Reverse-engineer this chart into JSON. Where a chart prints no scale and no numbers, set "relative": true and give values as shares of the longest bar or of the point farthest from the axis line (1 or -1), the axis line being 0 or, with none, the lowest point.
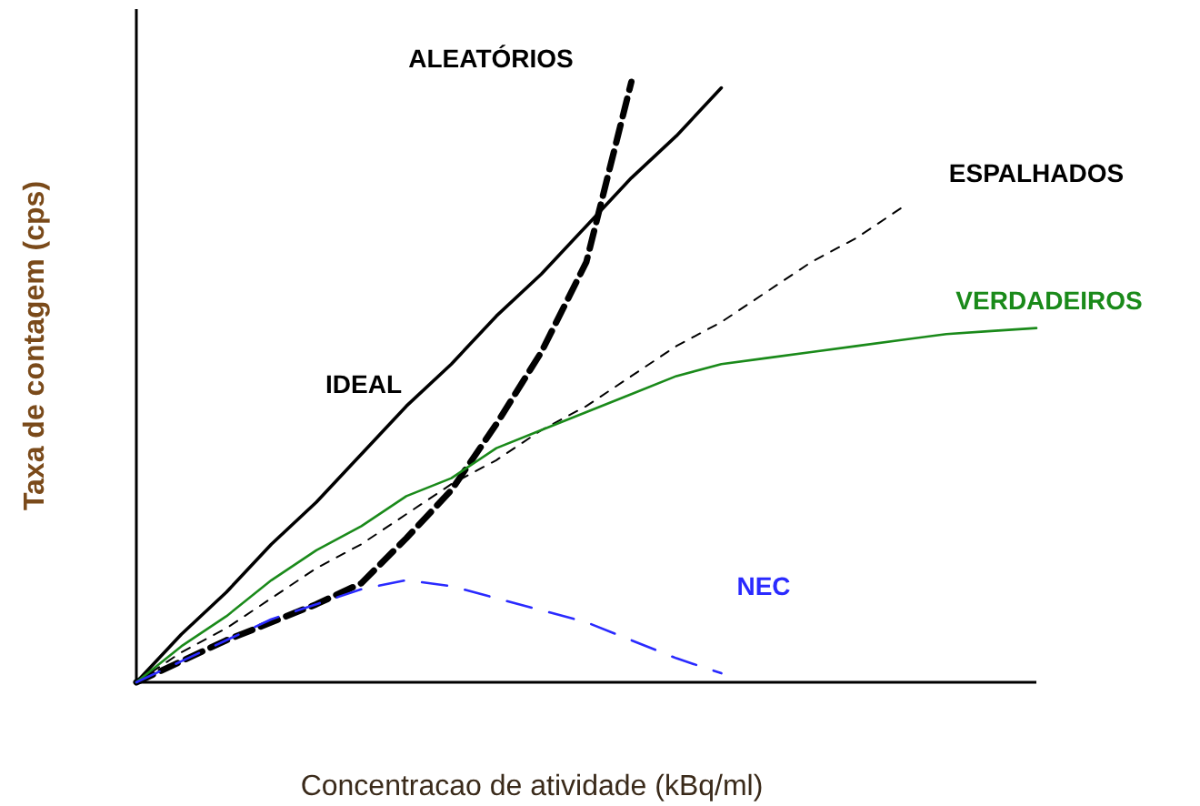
{
  "chart_data": {
    "type": "line",
    "relative": true,
    "xlabel": "Concentracao de atividade (kBq/ml)",
    "ylabel": "Taxa de contagem (cps)",
    "marker": "none",
    "categories": [
      null,
      null,
      null,
      null,
      null,
      null,
      null,
      null,
      null,
      null,
      null,
      null,
      null,
      null,
      null,
      null,
      null,
      null,
      null,
      null,
      null
    ],
    "series": [
      {
        "name": "IDEAL",
        "color": "#000000",
        "line_style": "solid",
        "values": [
          0,
          0.08,
          0.15,
          0.23,
          0.3,
          0.38,
          0.46,
          0.53,
          0.61,
          0.68,
          0.76,
          0.84,
          0.91,
          0.99,
          null,
          null,
          null,
          null,
          null,
          null,
          null
        ]
      },
      {
        "name": "ALEATÓRIOS",
        "color": "#000000",
        "line_style": "dashed",
        "values": [
          0,
          0.035,
          0.07,
          0.1,
          0.13,
          0.165,
          0.24,
          0.32,
          0.43,
          0.55,
          0.7,
          1,
          null,
          null,
          null,
          null,
          null,
          null,
          null,
          null,
          null
        ]
      },
      {
        "name": "ESPALHADOS",
        "color": "#000000",
        "line_style": "dashed",
        "values": [
          0,
          0.05,
          0.09,
          0.14,
          0.19,
          0.23,
          0.28,
          0.33,
          0.37,
          0.42,
          0.46,
          0.51,
          0.56,
          0.6,
          0.65,
          0.7,
          0.74,
          0.79,
          null,
          null,
          null
        ]
      },
      {
        "name": "VERDADEIROS",
        "color": "#1a8a1a",
        "line_style": "solid",
        "values": [
          0,
          0.06,
          0.11,
          0.17,
          0.22,
          0.26,
          0.31,
          0.34,
          0.39,
          0.42,
          0.45,
          0.48,
          0.51,
          0.53,
          0.54,
          0.55,
          0.56,
          0.57,
          0.58,
          0.585,
          0.59
        ]
      },
      {
        "name": "NEC",
        "color": "#2a2aff",
        "line_style": "dashed",
        "values": [
          0,
          0.035,
          0.07,
          0.105,
          0.13,
          0.155,
          0.17,
          0.16,
          0.14,
          0.12,
          0.1,
          0.07,
          0.04,
          0.015,
          null,
          null,
          null,
          null,
          null,
          null,
          null
        ]
      }
    ]
  }
}
